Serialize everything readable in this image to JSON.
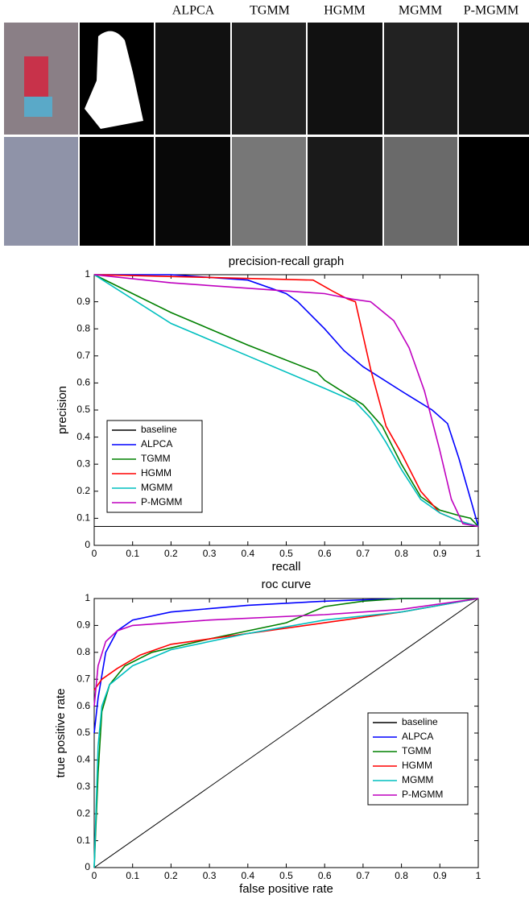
{
  "image_grid": {
    "columns": [
      "ALPCA",
      "TGMM",
      "HGMM",
      "MGMM",
      "P-MGMM"
    ]
  },
  "chart_data": [
    {
      "type": "line",
      "title": "precision-recall graph",
      "xlabel": "recall",
      "ylabel": "precision",
      "xlim": [
        0,
        1
      ],
      "ylim": [
        0,
        1
      ],
      "xticks": [
        0,
        0.1,
        0.2,
        0.3,
        0.4,
        0.5,
        0.6,
        0.7,
        0.8,
        0.9,
        1
      ],
      "yticks": [
        0,
        0.1,
        0.2,
        0.3,
        0.4,
        0.5,
        0.6,
        0.7,
        0.8,
        0.9,
        1
      ],
      "legend": "lower left",
      "series": [
        {
          "name": "baseline",
          "color": "#000000",
          "x": [
            0,
            1
          ],
          "values": [
            0.07,
            0.07
          ]
        },
        {
          "name": "ALPCA",
          "color": "#0000ff",
          "x": [
            0,
            0.2,
            0.4,
            0.5,
            0.53,
            0.6,
            0.65,
            0.7,
            0.8,
            0.88,
            0.92,
            0.95,
            0.98,
            1
          ],
          "values": [
            1,
            1,
            0.98,
            0.93,
            0.9,
            0.8,
            0.72,
            0.66,
            0.57,
            0.5,
            0.45,
            0.32,
            0.17,
            0.07
          ]
        },
        {
          "name": "TGMM",
          "color": "#008000",
          "x": [
            0,
            0.2,
            0.4,
            0.58,
            0.6,
            0.7,
            0.75,
            0.8,
            0.85,
            0.9,
            0.95,
            0.98,
            1
          ],
          "values": [
            1,
            0.86,
            0.74,
            0.64,
            0.61,
            0.52,
            0.44,
            0.3,
            0.18,
            0.13,
            0.11,
            0.1,
            0.07
          ]
        },
        {
          "name": "HGMM",
          "color": "#ff0000",
          "x": [
            0,
            0.3,
            0.57,
            0.62,
            0.66,
            0.68,
            0.72,
            0.76,
            0.8,
            0.85,
            0.9,
            0.95,
            1
          ],
          "values": [
            1,
            0.99,
            0.98,
            0.94,
            0.91,
            0.9,
            0.65,
            0.44,
            0.34,
            0.2,
            0.12,
            0.09,
            0.07
          ]
        },
        {
          "name": "MGMM",
          "color": "#00bfbf",
          "x": [
            0,
            0.2,
            0.4,
            0.6,
            0.68,
            0.72,
            0.76,
            0.8,
            0.85,
            0.9,
            0.95,
            1
          ],
          "values": [
            1,
            0.82,
            0.7,
            0.58,
            0.53,
            0.47,
            0.38,
            0.28,
            0.17,
            0.12,
            0.09,
            0.07
          ]
        },
        {
          "name": "P-MGMM",
          "color": "#bf00bf",
          "x": [
            0,
            0.2,
            0.4,
            0.6,
            0.67,
            0.72,
            0.78,
            0.82,
            0.86,
            0.9,
            0.93,
            0.96,
            1
          ],
          "values": [
            1,
            0.97,
            0.95,
            0.93,
            0.91,
            0.9,
            0.83,
            0.73,
            0.57,
            0.35,
            0.17,
            0.08,
            0.07
          ]
        }
      ]
    },
    {
      "type": "line",
      "title": "roc curve",
      "xlabel": "false positive rate",
      "ylabel": "true positive rate",
      "xlim": [
        0,
        1
      ],
      "ylim": [
        0,
        1
      ],
      "xticks": [
        0,
        0.1,
        0.2,
        0.3,
        0.4,
        0.5,
        0.6,
        0.7,
        0.8,
        0.9,
        1
      ],
      "yticks": [
        0,
        0.1,
        0.2,
        0.3,
        0.4,
        0.5,
        0.6,
        0.7,
        0.8,
        0.9,
        1
      ],
      "legend": "lower right",
      "series": [
        {
          "name": "baseline",
          "color": "#000000",
          "x": [
            0,
            1
          ],
          "values": [
            0,
            1
          ]
        },
        {
          "name": "ALPCA",
          "color": "#0000ff",
          "x": [
            0,
            0.01,
            0.03,
            0.06,
            0.1,
            0.2,
            0.4,
            0.6,
            0.8,
            1
          ],
          "values": [
            0.5,
            0.63,
            0.8,
            0.88,
            0.92,
            0.95,
            0.975,
            0.99,
            1,
            1
          ]
        },
        {
          "name": "TGMM",
          "color": "#008000",
          "x": [
            0,
            0.01,
            0.02,
            0.04,
            0.08,
            0.15,
            0.3,
            0.5,
            0.6,
            0.7,
            0.8,
            1
          ],
          "values": [
            0,
            0.35,
            0.58,
            0.68,
            0.75,
            0.8,
            0.85,
            0.91,
            0.97,
            0.99,
            1,
            1
          ]
        },
        {
          "name": "HGMM",
          "color": "#ff0000",
          "x": [
            0,
            0.02,
            0.06,
            0.12,
            0.2,
            0.4,
            0.6,
            0.8,
            1
          ],
          "values": [
            0.66,
            0.7,
            0.74,
            0.79,
            0.83,
            0.87,
            0.91,
            0.95,
            1
          ]
        },
        {
          "name": "MGMM",
          "color": "#00bfbf",
          "x": [
            0,
            0.01,
            0.02,
            0.04,
            0.1,
            0.2,
            0.4,
            0.6,
            0.8,
            1
          ],
          "values": [
            0,
            0.45,
            0.6,
            0.68,
            0.75,
            0.81,
            0.87,
            0.92,
            0.95,
            1
          ]
        },
        {
          "name": "P-MGMM",
          "color": "#bf00bf",
          "x": [
            0,
            0.01,
            0.03,
            0.06,
            0.1,
            0.3,
            0.6,
            0.8,
            1
          ],
          "values": [
            0.6,
            0.75,
            0.84,
            0.88,
            0.9,
            0.92,
            0.94,
            0.96,
            1
          ]
        }
      ]
    }
  ]
}
